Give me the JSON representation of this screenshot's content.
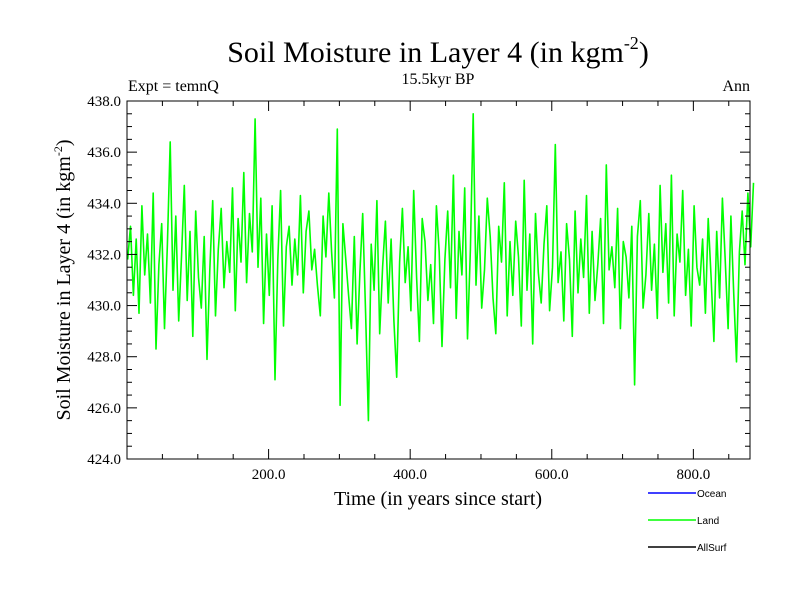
{
  "chart_data": {
    "type": "line",
    "title_main": "Soil Moisture in Layer 4 (in kgm",
    "title_sup": "-2",
    "title_close": ")",
    "subtitle": "15.5kyr BP",
    "left_label": "Expt = temnQ",
    "right_label": "Ann",
    "xlabel": "Time (in years since start)",
    "ylabel_main": "Soil Moisture in Layer 4 (in kgm",
    "ylabel_sup": "-2",
    "ylabel_close": ")",
    "xlim": [
      0,
      880
    ],
    "ylim": [
      424,
      438
    ],
    "xticks": [
      200,
      400,
      600,
      800
    ],
    "xtick_labels": [
      "200.0",
      "400.0",
      "600.0",
      "800.0"
    ],
    "yticks": [
      424,
      426,
      428,
      430,
      432,
      434,
      436,
      438
    ],
    "ytick_labels": [
      "424.0",
      "426.0",
      "428.0",
      "430.0",
      "432.0",
      "434.0",
      "436.0",
      "438.0"
    ],
    "legend_position": "bottom-right",
    "legend": [
      {
        "name": "Ocean",
        "color": "#0000ff"
      },
      {
        "name": "Land",
        "color": "#00ff00"
      },
      {
        "name": "AllSurf",
        "color": "#000000"
      }
    ],
    "series": [
      {
        "name": "Land",
        "color": "#00ff00",
        "x_start": 1,
        "x_step": 4,
        "values": [
          431.8,
          433.1,
          430.4,
          432.6,
          429.7,
          433.9,
          431.2,
          432.8,
          430.1,
          434.4,
          428.3,
          431.6,
          433.2,
          429.1,
          432.4,
          436.4,
          430.6,
          433.5,
          429.4,
          431.9,
          434.7,
          430.2,
          432.9,
          428.8,
          433.7,
          431.1,
          429.9,
          432.7,
          427.9,
          431.4,
          434.1,
          429.6,
          432.2,
          433.8,
          430.7,
          432.5,
          431.3,
          434.6,
          429.8,
          433.4,
          431.7,
          435.2,
          430.9,
          433.6,
          432.1,
          437.3,
          431.5,
          434.2,
          429.3,
          432.8,
          430.4,
          433.9,
          427.1,
          431.8,
          434.5,
          429.2,
          432.3,
          433.1,
          430.8,
          432.6,
          431.2,
          434.3,
          430.5,
          432.9,
          433.7,
          431.4,
          432.2,
          430.8,
          429.6,
          433.5,
          431.9,
          434.4,
          432.1,
          430.3,
          436.9,
          426.1,
          433.2,
          431.8,
          430.4,
          429.1,
          432.7,
          428.5,
          431.3,
          433.6,
          429.7,
          425.5,
          432.4,
          430.6,
          434.1,
          428.9,
          431.5,
          433.3,
          430.1,
          432.6,
          429.4,
          427.2,
          431.7,
          433.8,
          430.9,
          432.3,
          429.8,
          434.5,
          431.1,
          428.6,
          433.4,
          432.5,
          430.2,
          431.6,
          429.3,
          433.9,
          432.1,
          428.4,
          431.8,
          433.7,
          430.7,
          435.1,
          429.5,
          432.9,
          431.2,
          434.6,
          428.7,
          432.2,
          437.5,
          430.8,
          433.5,
          429.9,
          431.4,
          434.2,
          432.7,
          430.3,
          428.9,
          433.1,
          431.7,
          434.8,
          429.6,
          432.5,
          430.4,
          433.3,
          431.9,
          429.2,
          434.9,
          430.6,
          432.8,
          428.5,
          433.6,
          431.3,
          430.1,
          432.4,
          433.9,
          429.8,
          431.5,
          436.3,
          430.9,
          432.1,
          429.4,
          433.2,
          431.8,
          428.8,
          433.7,
          430.5,
          432.6,
          431.1,
          434.3,
          429.7,
          432.9,
          430.2,
          431.6,
          433.4,
          429.3,
          435.5,
          431.4,
          432.3,
          430.7,
          433.8,
          429.1,
          432.5,
          431.9,
          430.3,
          433.1,
          426.9,
          432.7,
          434.1,
          429.9,
          431.2,
          433.6,
          430.6,
          432.4,
          429.5,
          434.7,
          431.3,
          433.2,
          430.1,
          435.1,
          429.6,
          432.8,
          431.7,
          434.5,
          430.4,
          432.2,
          429.2,
          433.9,
          431.5,
          430.8,
          432.6,
          429.7,
          433.4,
          431.1,
          428.6,
          432.9,
          430.3,
          434.2,
          431.8,
          429.1,
          433.5,
          430.5,
          427.8,
          432.1,
          433.7,
          431.6,
          434.4,
          432.3,
          434.8
        ]
      }
    ]
  }
}
